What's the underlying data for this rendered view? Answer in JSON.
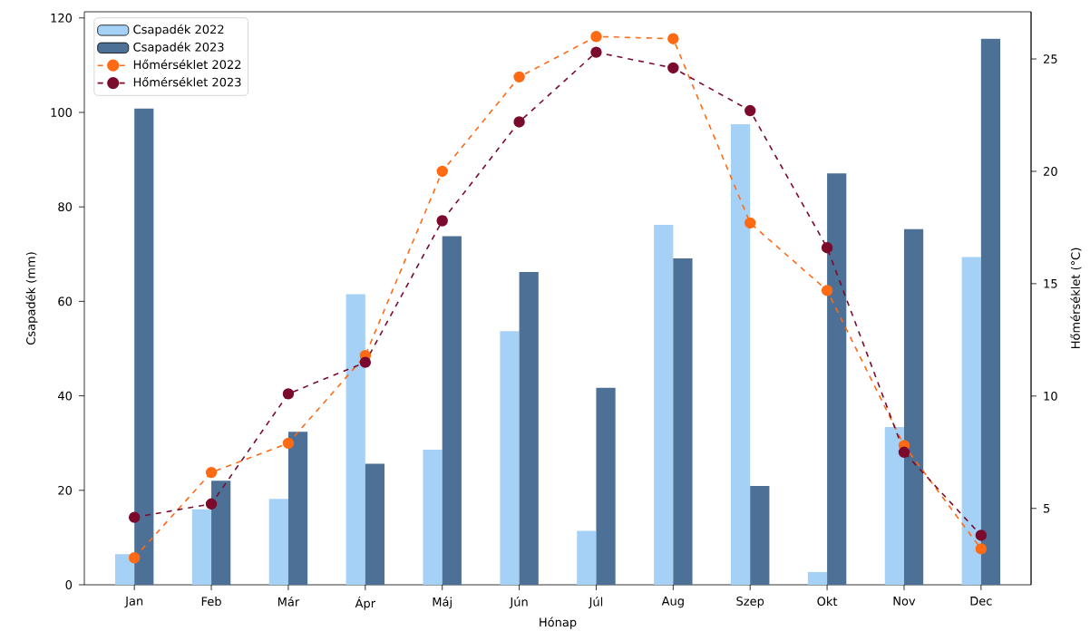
{
  "chart_data": {
    "type": "bar",
    "xlabel": "Hónap",
    "ylabel": "Csapadék (mm)",
    "y2label": "Hőmérséklet (°C)",
    "categories": [
      "Jan",
      "Feb",
      "Már",
      "Ápr",
      "Máj",
      "Jún",
      "Júl",
      "Aug",
      "Szep",
      "Okt",
      "Nov",
      "Dec"
    ],
    "series": [
      {
        "name": "Csapadék 2022",
        "color": "#a6d1f7",
        "values": [
          6.5,
          16,
          18.2,
          61.5,
          28.6,
          53.7,
          11.4,
          76.2,
          97.5,
          2.7,
          33.4,
          69.4
        ]
      },
      {
        "name": "Csapadék 2023",
        "color": "#4c7096",
        "values": [
          100.8,
          22,
          32.4,
          25.6,
          73.8,
          66.2,
          41.7,
          69.1,
          20.9,
          87.1,
          75.3,
          115.6
        ]
      },
      {
        "name": "Hőmérséklet 2022",
        "type": "line",
        "axis": "y2",
        "color": "#ff6a14",
        "values": [
          2.8,
          6.6,
          7.9,
          11.8,
          20.0,
          24.2,
          26.0,
          25.9,
          17.7,
          14.7,
          7.8,
          3.2
        ]
      },
      {
        "name": "Hőmérséklet 2023",
        "type": "line",
        "axis": "y2",
        "color": "#7b0b2c",
        "values": [
          4.6,
          5.2,
          10.1,
          11.5,
          17.8,
          22.2,
          25.3,
          24.6,
          22.7,
          16.6,
          7.5,
          3.8
        ]
      }
    ],
    "ylim": [
      0,
      121.3
    ],
    "yticks": [
      0,
      20,
      40,
      60,
      80,
      100,
      120
    ],
    "y2lim": [
      1.6,
      27.1
    ],
    "y2ticks": [
      5,
      10,
      15,
      20,
      25
    ],
    "legend": "top left",
    "marker": "circle",
    "line_style": "dashed",
    "grid": false
  }
}
